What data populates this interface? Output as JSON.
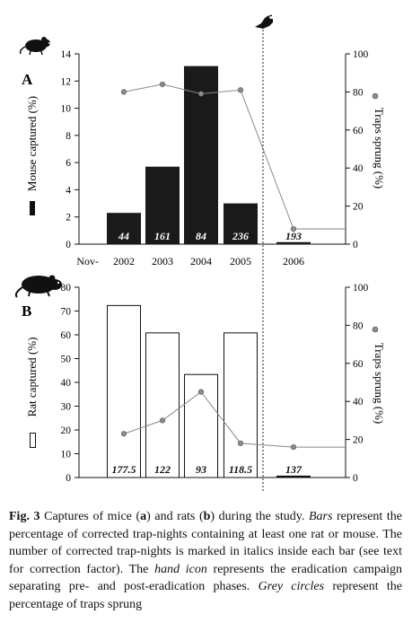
{
  "chart_data": [
    {
      "type": "bar",
      "panel_label": "A",
      "categories": [
        "2002",
        "2003",
        "2004",
        "2005",
        "2006"
      ],
      "x_prefix_label": "Nov-",
      "bar_values": [
        2.3,
        5.7,
        13.1,
        3.0,
        0.15
      ],
      "bar_labels": [
        "44",
        "161",
        "84",
        "236",
        "193"
      ],
      "bar_fill": "#1a1a1a",
      "bar_label_color": "#ffffff",
      "bar_label_color_last": "#111111",
      "ylabel": "Mouse captured (%)",
      "ylim": [
        0,
        14
      ],
      "yticks": [
        "0",
        "2",
        "4",
        "6",
        "8",
        "10",
        "12",
        "14"
      ],
      "y2label": "Traps sprung (%)",
      "y2lim": [
        0,
        100
      ],
      "y2ticks": [
        "0",
        "20",
        "40",
        "60",
        "80",
        "100"
      ],
      "line_series": {
        "x": [
          "2002",
          "2003",
          "2004",
          "2005",
          "2006"
        ],
        "values": [
          80,
          84,
          79,
          81,
          8
        ]
      },
      "line_color": "#8a8a8a",
      "marker_color": "#8c8c8c",
      "legend_symbol": "filled-bar",
      "icon": "mouse-icon"
    },
    {
      "type": "bar",
      "panel_label": "B",
      "categories": [
        "2002",
        "2003",
        "2004",
        "2005",
        "2006"
      ],
      "bar_values": [
        72.5,
        61,
        43.5,
        61,
        0.8
      ],
      "bar_labels": [
        "177.5",
        "122",
        "93",
        "118.5",
        "137"
      ],
      "bar_fill": "#ffffff",
      "bar_label_color": "#111111",
      "bar_label_color_last": "#111111",
      "ylabel": "Rat captured (%)",
      "ylim": [
        0,
        80
      ],
      "yticks": [
        "0",
        "10",
        "20",
        "30",
        "40",
        "50",
        "60",
        "70",
        "80"
      ],
      "y2label": "Traps sprung (%)",
      "y2lim": [
        0,
        100
      ],
      "y2ticks": [
        "0",
        "20",
        "40",
        "60",
        "80",
        "100"
      ],
      "line_series": {
        "x": [
          "2002",
          "2003",
          "2004",
          "2005",
          "2006"
        ],
        "values": [
          23,
          30,
          45,
          18,
          16
        ]
      },
      "line_color": "#8a8a8a",
      "marker_color": "#8c8c8c",
      "legend_symbol": "open-bar",
      "icon": "rat-icon"
    }
  ],
  "eradication_marker": {
    "icon": "hand-icon"
  },
  "caption": {
    "fig_label": "Fig. 3",
    "segments": [
      {
        "t": "  Captures of mice (",
        "s": "n"
      },
      {
        "t": "a",
        "s": "b"
      },
      {
        "t": ") and rats (",
        "s": "n"
      },
      {
        "t": "b",
        "s": "b"
      },
      {
        "t": ") during the study. ",
        "s": "n"
      },
      {
        "t": "Bars",
        "s": "i"
      },
      {
        "t": " represent the percentage of corrected trap-nights containing at least one rat or mouse. The number of corrected trap-nights is marked in italics inside each bar (see text for correction factor). The ",
        "s": "n"
      },
      {
        "t": "hand icon",
        "s": "i"
      },
      {
        "t": " represents the eradication campaign separating pre- and post-eradication phases. ",
        "s": "n"
      },
      {
        "t": "Grey circles",
        "s": "i"
      },
      {
        "t": " represent the percentage of traps sprung",
        "s": "n"
      }
    ]
  }
}
